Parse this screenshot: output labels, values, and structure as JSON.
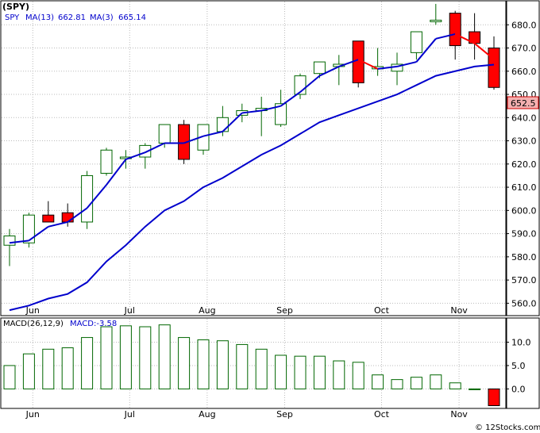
{
  "header": {
    "ticker": "(SPY)",
    "ma_symbol": "SPY",
    "ma13_label": "MA(13)",
    "ma13_value": "662.81",
    "ma3_label": "MA(3)",
    "ma3_value": "665.14",
    "last_price": "652.5",
    "macd_label": "MACD(26,12,9)",
    "macd_value_label": "MACD:-3.58",
    "watermark": "© 12Stocks.com"
  },
  "colors": {
    "up_candle": "#ffffff",
    "up_candle_border": "#006600",
    "down_candle": "#ff0000",
    "ma13_line": "#0000cc",
    "ma3_line_up": "#0000cc",
    "ma3_line_down": "#ff0000",
    "macd_bar_border": "#006600",
    "macd_bar_neg_fill": "#ff0000",
    "price_tag_bg": "#f4b0b0"
  },
  "chart_data": [
    {
      "type": "candlestick",
      "title": "(SPY)",
      "ylim": [
        555,
        690
      ],
      "yticks": [
        560,
        570,
        580,
        590,
        600,
        610,
        620,
        630,
        640,
        650,
        660,
        670,
        680
      ],
      "xticks": [
        {
          "label": "Jun",
          "index": 1.2
        },
        {
          "label": "Jul",
          "index": 6.2
        },
        {
          "label": "Aug",
          "index": 10.2
        },
        {
          "label": "Sep",
          "index": 14.2
        },
        {
          "label": "Oct",
          "index": 19.2
        },
        {
          "label": "Nov",
          "index": 23.2
        }
      ],
      "candles": [
        {
          "o": 585,
          "h": 592,
          "l": 576,
          "c": 589
        },
        {
          "o": 586,
          "h": 599,
          "l": 584,
          "c": 598
        },
        {
          "o": 598,
          "h": 604,
          "l": 595,
          "c": 595
        },
        {
          "o": 599,
          "h": 603,
          "l": 593,
          "c": 595
        },
        {
          "o": 595,
          "h": 617,
          "l": 592,
          "c": 615
        },
        {
          "o": 616,
          "h": 627,
          "l": 615,
          "c": 626
        },
        {
          "o": 623,
          "h": 626,
          "l": 618,
          "c": 623
        },
        {
          "o": 623,
          "h": 629,
          "l": 618,
          "c": 628
        },
        {
          "o": 629,
          "h": 637,
          "l": 627,
          "c": 637
        },
        {
          "o": 637,
          "h": 639,
          "l": 620,
          "c": 622
        },
        {
          "o": 626,
          "h": 637,
          "l": 624,
          "c": 637
        },
        {
          "o": 634,
          "h": 645,
          "l": 632,
          "c": 640
        },
        {
          "o": 641,
          "h": 646,
          "l": 638,
          "c": 643
        },
        {
          "o": 643,
          "h": 649,
          "l": 632,
          "c": 644
        },
        {
          "o": 637,
          "h": 652,
          "l": 636,
          "c": 646
        },
        {
          "o": 650,
          "h": 659,
          "l": 648,
          "c": 658
        },
        {
          "o": 659,
          "h": 664,
          "l": 657,
          "c": 664
        },
        {
          "o": 662,
          "h": 667,
          "l": 654,
          "c": 663
        },
        {
          "o": 673,
          "h": 673,
          "l": 653,
          "c": 655
        },
        {
          "o": 661,
          "h": 670,
          "l": 658,
          "c": 662
        },
        {
          "o": 660,
          "h": 668,
          "l": 654,
          "c": 663
        },
        {
          "o": 668,
          "h": 677,
          "l": 665,
          "c": 677
        },
        {
          "o": 682,
          "h": 689,
          "l": 680,
          "c": 682
        },
        {
          "o": 685,
          "h": 686,
          "l": 665,
          "c": 671
        },
        {
          "o": 677,
          "h": 685,
          "l": 665,
          "c": 672
        },
        {
          "o": 670,
          "h": 675,
          "l": 652,
          "c": 653
        }
      ],
      "series": [
        {
          "name": "MA(13)",
          "values": [
            557,
            559,
            562,
            564,
            569,
            578,
            585,
            593,
            600,
            604,
            610,
            614,
            619,
            624,
            628,
            633,
            638,
            641,
            644,
            647,
            650,
            654,
            658,
            660,
            662,
            662.81
          ]
        },
        {
          "name": "MA(3)",
          "values": [
            586,
            587,
            593,
            595,
            601,
            611,
            622,
            625,
            629,
            629,
            632,
            634,
            642,
            643,
            645,
            651,
            658,
            662,
            665,
            661,
            662,
            664,
            674,
            676,
            672,
            665.14
          ]
        }
      ]
    },
    {
      "type": "bar",
      "title": "MACD(26,12,9)",
      "ylim": [
        -4,
        15
      ],
      "yticks": [
        "10.0",
        "5.0",
        "0.0"
      ],
      "ytick_values": [
        10,
        5,
        0
      ],
      "values": [
        5,
        7.5,
        8.5,
        8.8,
        11,
        13.3,
        13.5,
        13.3,
        13.7,
        11,
        10.5,
        10.3,
        9.5,
        8.5,
        7.2,
        7.0,
        7.0,
        6.0,
        5.7,
        3.0,
        2.0,
        2.5,
        3.0,
        1.3,
        0,
        -3.58
      ],
      "xticks": [
        "Jun",
        "Jul",
        "Aug",
        "Sep",
        "Oct",
        "Nov"
      ]
    }
  ]
}
